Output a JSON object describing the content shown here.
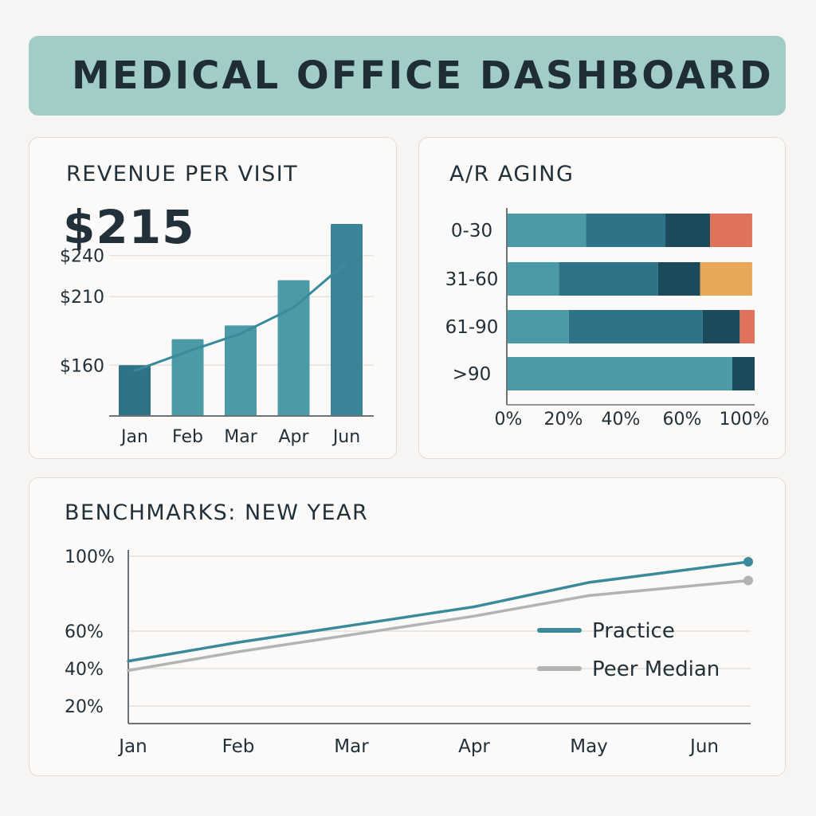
{
  "header": {
    "title": "MEDICAL OFFICE DASHBOARD"
  },
  "revenue": {
    "title": "REVENUE PER VISIT",
    "headline_value": "$215"
  },
  "ar_aging": {
    "title": "A/R AGING"
  },
  "benchmarks": {
    "title": "BENCHMARKS: NEW YEAR"
  },
  "colors": {
    "teal_light": "#4b9ba7",
    "teal_mid": "#2f7388",
    "teal_dark": "#1b4a5b",
    "coral": "#e0725c",
    "amber": "#e8a85a",
    "gray_line": "#b3b3b3"
  },
  "chart_data": [
    {
      "id": "revenue",
      "type": "bar",
      "categories": [
        "Jan",
        "Feb",
        "Mar",
        "Apr",
        "Jun"
      ],
      "values": [
        160,
        179,
        189,
        222,
        263
      ],
      "trend_line": [
        156,
        170,
        183,
        202,
        235
      ],
      "y_ticks": [
        {
          "value": 160,
          "label": "$160"
        },
        {
          "value": 210,
          "label": "$210"
        },
        {
          "value": 240,
          "label": "$240"
        }
      ],
      "ylim": [
        123,
        263
      ],
      "grid": true
    },
    {
      "id": "ar_aging",
      "type": "bar",
      "orientation": "horizontal",
      "stacked": true,
      "categories": [
        "0-30",
        "31-60",
        "61-90",
        ">90"
      ],
      "series": [
        {
          "values": [
            32,
            21,
            25,
            91
          ],
          "color": "#4b9ba7"
        },
        {
          "values": [
            32,
            40,
            54,
            0
          ],
          "color": "#2f7388"
        },
        {
          "values": [
            18,
            17,
            15,
            9
          ],
          "color": "#1b4a5b"
        },
        {
          "values": [
            17,
            0,
            6,
            0
          ],
          "color": "#e0725c"
        },
        {
          "values": [
            0,
            21,
            0,
            0
          ],
          "color": "#e8a85a"
        }
      ],
      "x_ticks": [
        "0%",
        "20%",
        "40%",
        "60%",
        "100%"
      ],
      "xlim": [
        0,
        100
      ]
    },
    {
      "id": "benchmarks",
      "type": "line",
      "x": [
        "Jan",
        "Feb",
        "Mar",
        "Apr",
        "May",
        "Jun"
      ],
      "series": [
        {
          "name": "Practice",
          "values": [
            44,
            54,
            63,
            73,
            86,
            97
          ],
          "color": "#3a8a9c"
        },
        {
          "name": "Peer Median",
          "values": [
            39,
            49,
            58,
            68,
            79,
            87
          ],
          "color": "#b3b3b3"
        }
      ],
      "y_ticks": [
        {
          "value": 20,
          "label": "20%"
        },
        {
          "value": 40,
          "label": "40%"
        },
        {
          "value": 60,
          "label": "60%"
        },
        {
          "value": 100,
          "label": "100%"
        }
      ],
      "grid": true,
      "legend": "right"
    }
  ]
}
